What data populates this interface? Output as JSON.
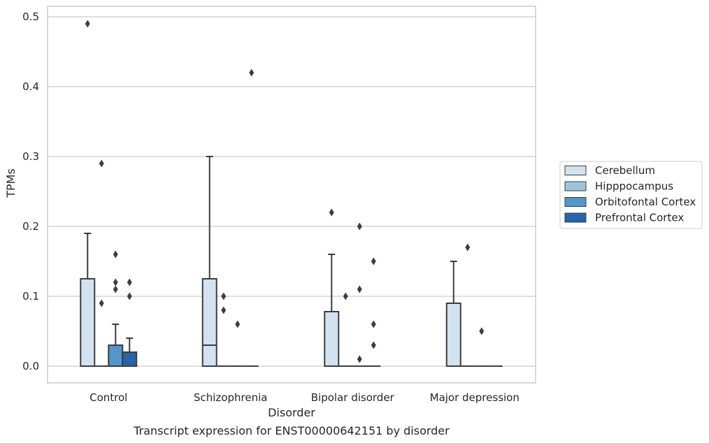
{
  "chart_data": {
    "type": "box",
    "title": "",
    "caption": "Transcript expression for ENST00000642151 by disorder",
    "xlabel": "Disorder",
    "ylabel": "TPMs",
    "ylim": [
      -0.024,
      0.515
    ],
    "yticks": [
      0.0,
      0.1,
      0.2,
      0.3,
      0.4,
      0.5
    ],
    "ytick_labels": [
      "0.0",
      "0.1",
      "0.2",
      "0.3",
      "0.4",
      "0.5"
    ],
    "categories": [
      "Control",
      "Schizophrenia",
      "Bipolar disorder",
      "Major depression"
    ],
    "grid": true,
    "legend_position": "right",
    "series": [
      {
        "name": "Cerebellum",
        "color": "#d3e2f0",
        "boxes": [
          {
            "q1": 0.0,
            "median": 0.0,
            "q3": 0.125,
            "whisker_low": 0.0,
            "whisker_high": 0.19,
            "outliers": [
              0.49
            ]
          },
          {
            "q1": 0.0,
            "median": 0.03,
            "q3": 0.125,
            "whisker_low": 0.0,
            "whisker_high": 0.3,
            "outliers": []
          },
          {
            "q1": 0.0,
            "median": 0.0,
            "q3": 0.078,
            "whisker_low": 0.0,
            "whisker_high": 0.16,
            "outliers": [
              0.22
            ]
          },
          {
            "q1": 0.0,
            "median": 0.0,
            "q3": 0.09,
            "whisker_low": 0.0,
            "whisker_high": 0.15,
            "outliers": []
          }
        ]
      },
      {
        "name": "Hipppocampus",
        "color": "#9dc3df",
        "boxes": [
          {
            "q1": 0.0,
            "median": 0.0,
            "q3": 0.0,
            "whisker_low": 0.0,
            "whisker_high": 0.0,
            "outliers": [
              0.29,
              0.09
            ]
          },
          {
            "q1": 0.0,
            "median": 0.0,
            "q3": 0.0,
            "whisker_low": 0.0,
            "whisker_high": 0.0,
            "outliers": [
              0.1,
              0.08
            ]
          },
          {
            "q1": 0.0,
            "median": 0.0,
            "q3": 0.0,
            "whisker_low": 0.0,
            "whisker_high": 0.0,
            "outliers": [
              0.1
            ]
          },
          {
            "q1": 0.0,
            "median": 0.0,
            "q3": 0.0,
            "whisker_low": 0.0,
            "whisker_high": 0.0,
            "outliers": [
              0.17
            ]
          }
        ]
      },
      {
        "name": "Orbitofontal Cortex",
        "color": "#5496c8",
        "boxes": [
          {
            "q1": 0.0,
            "median": 0.0,
            "q3": 0.03,
            "whisker_low": 0.0,
            "whisker_high": 0.06,
            "outliers": [
              0.16,
              0.12,
              0.11
            ]
          },
          {
            "q1": 0.0,
            "median": 0.0,
            "q3": 0.0,
            "whisker_low": 0.0,
            "whisker_high": 0.0,
            "outliers": [
              0.06
            ]
          },
          {
            "q1": 0.0,
            "median": 0.0,
            "q3": 0.0,
            "whisker_low": 0.0,
            "whisker_high": 0.0,
            "outliers": [
              0.2,
              0.11,
              0.01
            ]
          },
          {
            "q1": 0.0,
            "median": 0.0,
            "q3": 0.0,
            "whisker_low": 0.0,
            "whisker_high": 0.0,
            "outliers": [
              0.05
            ]
          }
        ]
      },
      {
        "name": "Prefrontal Cortex",
        "color": "#2466a8",
        "boxes": [
          {
            "q1": 0.0,
            "median": 0.0,
            "q3": 0.02,
            "whisker_low": 0.0,
            "whisker_high": 0.04,
            "outliers": [
              0.12,
              0.1
            ]
          },
          {
            "q1": 0.0,
            "median": 0.0,
            "q3": 0.0,
            "whisker_low": 0.0,
            "whisker_high": 0.0,
            "outliers": [
              0.42
            ]
          },
          {
            "q1": 0.0,
            "median": 0.0,
            "q3": 0.0,
            "whisker_low": 0.0,
            "whisker_high": 0.0,
            "outliers": [
              0.15,
              0.06,
              0.03
            ]
          },
          {
            "q1": 0.0,
            "median": 0.0,
            "q3": 0.0,
            "whisker_low": 0.0,
            "whisker_high": 0.0,
            "outliers": []
          }
        ]
      }
    ]
  }
}
